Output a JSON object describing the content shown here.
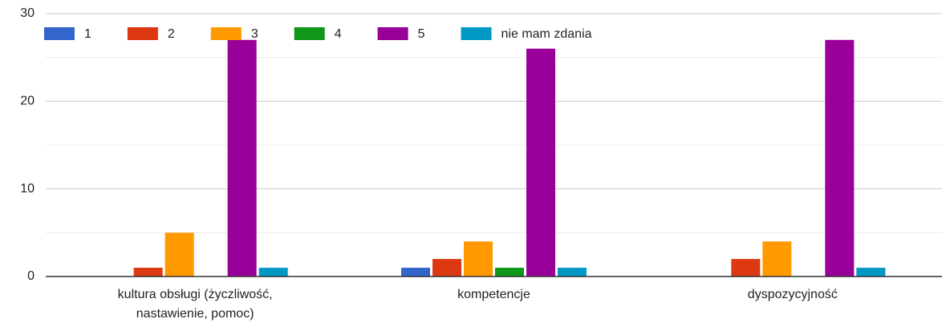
{
  "chart_data": {
    "type": "bar",
    "categories": [
      "kultura obsługi (życzliwość, nastawienie, pomoc)",
      "kompetencje",
      "dyspozycyjność"
    ],
    "series": [
      {
        "name": "1",
        "color": "#3366cc",
        "values": [
          0,
          1,
          0
        ]
      },
      {
        "name": "2",
        "color": "#dc3912",
        "values": [
          1,
          2,
          2
        ]
      },
      {
        "name": "3",
        "color": "#ff9900",
        "values": [
          5,
          4,
          4
        ]
      },
      {
        "name": "4",
        "color": "#109618",
        "values": [
          0,
          1,
          0
        ]
      },
      {
        "name": "5",
        "color": "#990099",
        "values": [
          27,
          26,
          27
        ]
      },
      {
        "name": "nie mam zdania",
        "color": "#0099c6",
        "values": [
          1,
          1,
          1
        ]
      }
    ],
    "ylim": [
      0,
      30
    ],
    "yticks": [
      0,
      10,
      20,
      30
    ],
    "minor_yticks": [
      5,
      15,
      25
    ],
    "grid": true,
    "legend": "top"
  }
}
